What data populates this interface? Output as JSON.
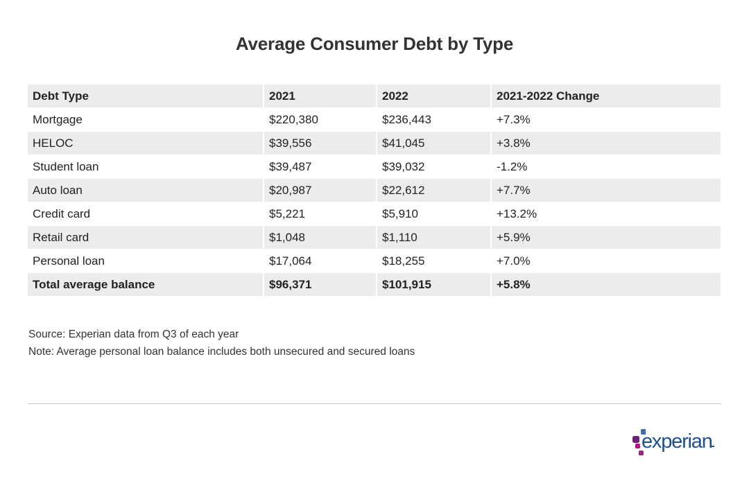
{
  "title": "Average Consumer Debt by Type",
  "table": {
    "headers": [
      "Debt Type",
      "2021",
      "2022",
      "2021-2022 Change"
    ],
    "rows": [
      [
        "Mortgage",
        "$220,380",
        "$236,443",
        "+7.3%"
      ],
      [
        "HELOC",
        "$39,556",
        "$41,045",
        "+3.8%"
      ],
      [
        "Student loan",
        "$39,487",
        "$39,032",
        "-1.2%"
      ],
      [
        "Auto loan",
        "$20,987",
        "$22,612",
        "+7.7%"
      ],
      [
        "Credit card",
        "$5,221",
        "$5,910",
        "+13.2%"
      ],
      [
        "Retail card",
        "$1,048",
        "$1,110",
        "+5.9%"
      ],
      [
        "Personal loan",
        "$17,064",
        "$18,255",
        "+7.0%"
      ],
      [
        "Total average balance",
        "$96,371",
        "$101,915",
        "+5.8%"
      ]
    ]
  },
  "source": "Source: Experian data from Q3 of each year",
  "note": "Note: Average personal loan balance includes both unsecured and secured loans",
  "logo": {
    "text": "experian",
    "colors": {
      "text": "#1d4f91",
      "dot_blue": "#426da9",
      "dot_purple": "#6d2077",
      "dot_magenta": "#af1685",
      "dot_light_purple": "#982881"
    }
  }
}
